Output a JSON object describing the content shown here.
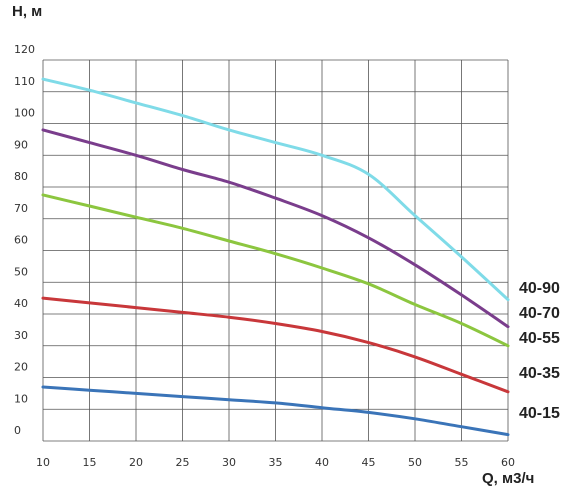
{
  "chart_data": {
    "type": "line",
    "ylabel": "H, м",
    "xlabel": "Q, м3/ч",
    "xlim": [
      10,
      60
    ],
    "ylim": [
      0,
      120
    ],
    "xticks": [
      10,
      15,
      20,
      25,
      30,
      35,
      40,
      45,
      50,
      55,
      60
    ],
    "yticks": [
      0,
      10,
      20,
      30,
      40,
      50,
      60,
      70,
      80,
      90,
      100,
      110,
      120
    ],
    "grid": true,
    "series": [
      {
        "name": "40-90",
        "color": "#7fdbe8",
        "x": [
          10,
          15,
          20,
          25,
          30,
          35,
          40,
          45,
          50,
          55,
          60
        ],
        "y": [
          114,
          110.5,
          106.5,
          102.5,
          98,
          94,
          90,
          84,
          71,
          58,
          44.5
        ]
      },
      {
        "name": "40-70",
        "color": "#7a3d8c",
        "x": [
          10,
          15,
          20,
          25,
          30,
          35,
          40,
          45,
          50,
          55,
          60
        ],
        "y": [
          98,
          94,
          90,
          85.5,
          81.5,
          76.5,
          71,
          64,
          55.5,
          46,
          36
        ]
      },
      {
        "name": "40-55",
        "color": "#8cc63f",
        "x": [
          10,
          15,
          20,
          25,
          30,
          35,
          40,
          45,
          50,
          55,
          60
        ],
        "y": [
          77.5,
          74,
          70.5,
          67,
          63,
          59,
          54.5,
          49.5,
          43,
          37,
          30
        ]
      },
      {
        "name": "40-35",
        "color": "#c8373a",
        "x": [
          10,
          15,
          20,
          25,
          30,
          35,
          40,
          45,
          50,
          55,
          60
        ],
        "y": [
          45,
          43.5,
          42,
          40.5,
          39,
          37,
          34.5,
          31,
          26.5,
          21,
          15.5
        ]
      },
      {
        "name": "40-15",
        "color": "#3a74b8",
        "x": [
          10,
          15,
          20,
          25,
          30,
          35,
          40,
          45,
          50,
          55,
          60
        ],
        "y": [
          17,
          16,
          15,
          14,
          13,
          12,
          10.5,
          9,
          7,
          4.5,
          2
        ]
      }
    ]
  }
}
